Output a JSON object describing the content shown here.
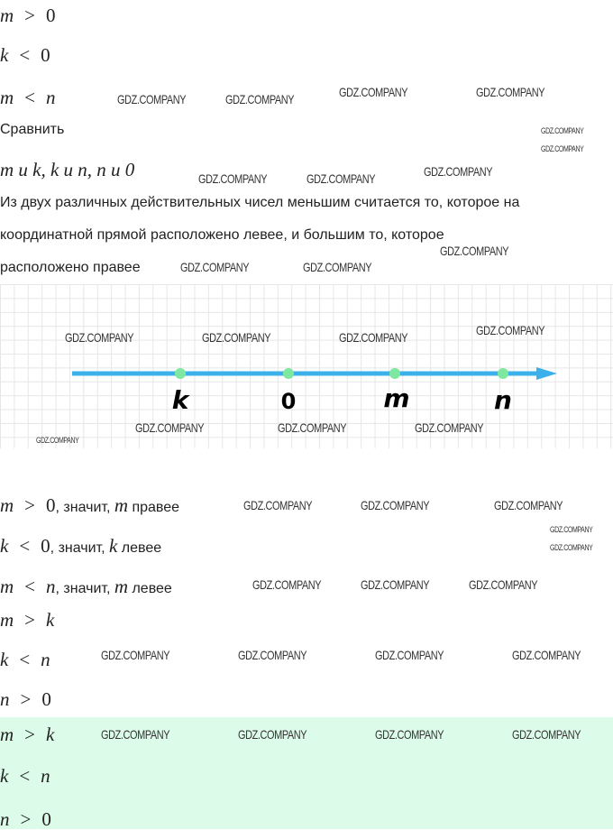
{
  "watermark": "GDZ.COMPANY",
  "given": [
    {
      "a": "m",
      "op": ">",
      "b": "0"
    },
    {
      "a": "k",
      "op": "<",
      "b": "0"
    },
    {
      "a": "m",
      "op": "<",
      "b": "n"
    }
  ],
  "task": {
    "label": "Сравнить",
    "pairs": "m и k, k и n, n и 0"
  },
  "rule": [
    "Из двух различных действительных чисел меньшим считается то, которое на",
    "координатной прямой расположено левее, и большим то, которое",
    "расположено правее"
  ],
  "number_line": {
    "points": [
      "k",
      "0",
      "m",
      "n"
    ],
    "axis_color": "#3bb0ea",
    "point_color": "#7ee8a0"
  },
  "reasoning": [
    {
      "a": "m",
      "op": ">",
      "b": "0",
      "text": ", значит, ",
      "v": "m",
      "dir": " правее"
    },
    {
      "a": "k",
      "op": "<",
      "b": "0",
      "text": ", значит, ",
      "v": "k",
      "dir": " левее"
    },
    {
      "a": "m",
      "op": "<",
      "b": "n",
      "text": ", значит, ",
      "v": "m",
      "dir": " левее"
    }
  ],
  "results": [
    {
      "a": "m",
      "op": ">",
      "b": "k"
    },
    {
      "a": "k",
      "op": "<",
      "b": "n"
    },
    {
      "a": "n",
      "op": ">",
      "b": "0"
    }
  ],
  "answer": {
    "background": "#dcfce9",
    "items": [
      {
        "a": "m",
        "op": ">",
        "b": "k"
      },
      {
        "a": "k",
        "op": "<",
        "b": "n"
      },
      {
        "a": "n",
        "op": ">",
        "b": "0"
      }
    ]
  }
}
